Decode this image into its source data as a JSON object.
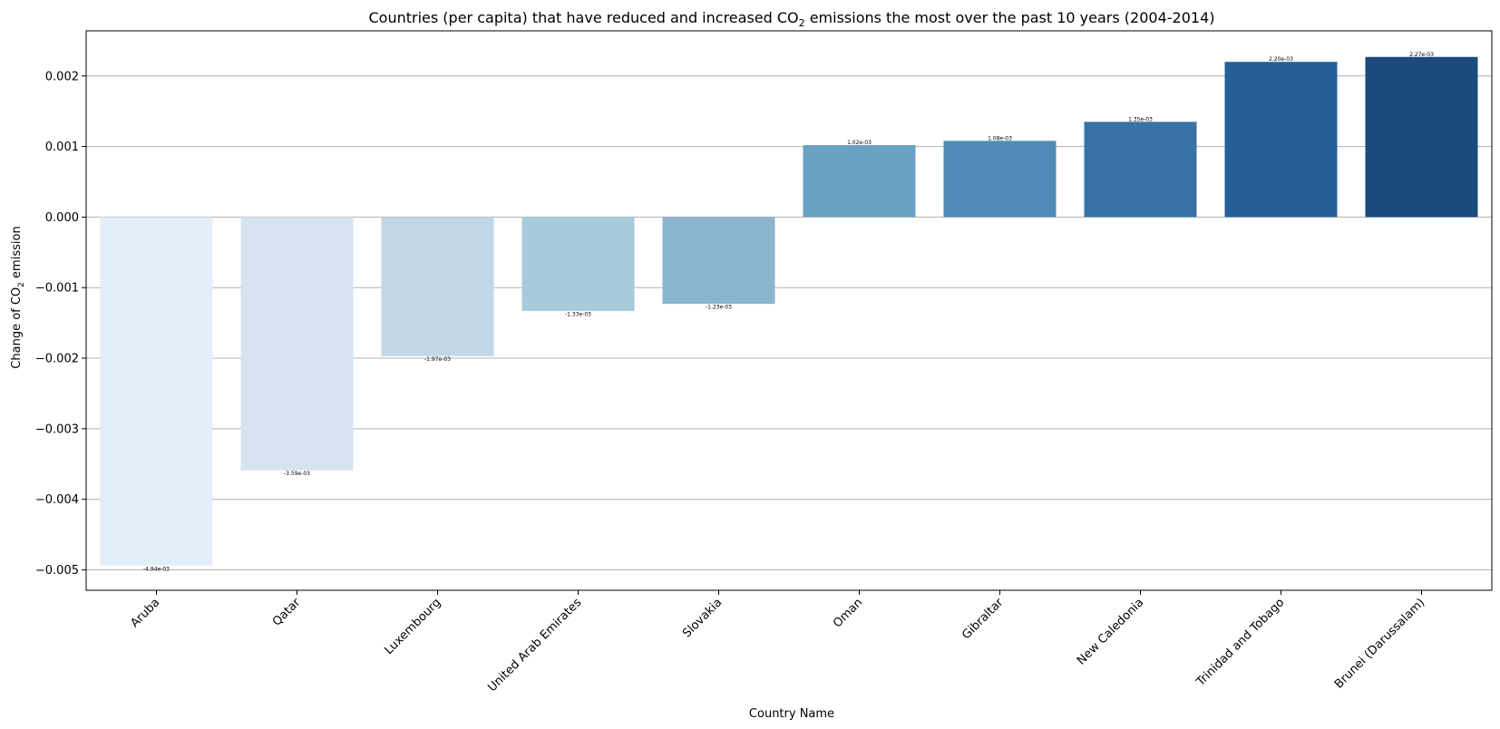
{
  "chart_data": {
    "type": "bar",
    "title_parts": [
      "Countries (per capita) that have reduced and increased CO",
      "2",
      " emissions the most over the past 10 years (2004-2014)"
    ],
    "xlabel": "Country Name",
    "ylabel_parts": [
      "Change of CO",
      "2",
      " emission"
    ],
    "categories": [
      "Aruba",
      "Qatar",
      "Luxembourg",
      "United Arab Emirates",
      "Slovakia",
      "Oman",
      "Gibraltar",
      "New Caledonia",
      "Trinidad and Tobago",
      "Brunei (Darussalam)"
    ],
    "values": [
      -0.00494,
      -0.00359,
      -0.00197,
      -0.00133,
      -0.00123,
      0.00102,
      0.00108,
      0.00135,
      0.0022,
      0.00227
    ],
    "data_labels": [
      "-4.94e-03",
      "-3.59e-03",
      "-1.97e-03",
      "-1.33e-03",
      "-1.23e-03",
      "1.02e-03",
      "1.08e-03",
      "1.35e-03",
      "2.20e-03",
      "2.27e-03"
    ],
    "colors": [
      "#e4eef8",
      "#d6e4f1",
      "#c2d7e7",
      "#a9c9dc",
      "#8bb5cf",
      "#6aa1c5",
      "#4f8bb7",
      "#3773a7",
      "#245f98",
      "#1b4a7f"
    ],
    "yticks": [
      0.002,
      0.001,
      0.0,
      -0.001,
      -0.002,
      -0.003,
      -0.004,
      -0.005
    ],
    "ytick_labels": [
      "0.002",
      "0.001",
      "0.000",
      "−0.001",
      "−0.002",
      "−0.003",
      "−0.004",
      "−0.005"
    ],
    "ylim": [
      -0.00529,
      0.00264
    ],
    "grid": "y",
    "legend": "none"
  }
}
